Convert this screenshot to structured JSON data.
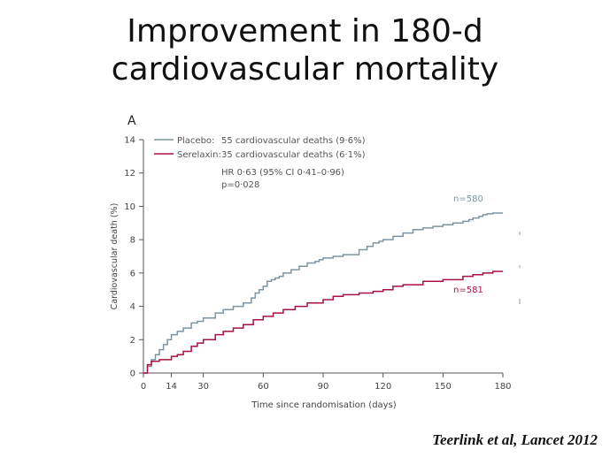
{
  "slide": {
    "title_line1": "Improvement in 180-d",
    "title_line2": "cardiovascular mortality",
    "citation": "Teerlink et al, Lancet 2012"
  },
  "chart_data": {
    "type": "line",
    "panel_label": "A",
    "xlabel": "Time since randomisation (days)",
    "ylabel": "Cardiovascular death (%)",
    "xlim": [
      0,
      180
    ],
    "ylim": [
      0,
      14
    ],
    "xticks": [
      0,
      14,
      30,
      60,
      90,
      120,
      150,
      180
    ],
    "yticks": [
      0,
      2,
      4,
      6,
      8,
      10,
      12,
      14
    ],
    "legend": {
      "position": "top-left",
      "entries": [
        {
          "label": "Placebo:",
          "text": "55 cardiovascular deaths (9·6%)",
          "color": "#7d95a3"
        },
        {
          "label": "Serelaxin:",
          "text": "35 cardiovascular deaths (6·1%)",
          "color": "#a8123f"
        }
      ]
    },
    "stats": {
      "hr": "HR 0·63 (95% CI 0·41–0·96)",
      "p": "p=0·028"
    },
    "series": [
      {
        "name": "Placebo",
        "color": "#7d95a3",
        "end_label": "n=580",
        "x": [
          0,
          2,
          4,
          6,
          8,
          10,
          12,
          14,
          17,
          20,
          24,
          27,
          30,
          36,
          40,
          45,
          50,
          54,
          56,
          58,
          60,
          62,
          64,
          66,
          68,
          70,
          74,
          78,
          82,
          86,
          88,
          90,
          92,
          95,
          100,
          108,
          112,
          115,
          118,
          120,
          125,
          130,
          135,
          140,
          145,
          150,
          155,
          160,
          163,
          165,
          168,
          170,
          172,
          175,
          180
        ],
        "y": [
          0,
          0.4,
          0.8,
          1.1,
          1.4,
          1.7,
          2.0,
          2.3,
          2.5,
          2.7,
          3.0,
          3.1,
          3.3,
          3.6,
          3.8,
          4.0,
          4.2,
          4.5,
          4.8,
          5.0,
          5.2,
          5.5,
          5.6,
          5.7,
          5.8,
          6.0,
          6.2,
          6.4,
          6.6,
          6.7,
          6.8,
          6.9,
          6.9,
          7.0,
          7.1,
          7.4,
          7.6,
          7.8,
          7.9,
          8.0,
          8.2,
          8.4,
          8.6,
          8.7,
          8.8,
          8.9,
          9.0,
          9.1,
          9.2,
          9.3,
          9.4,
          9.5,
          9.55,
          9.6,
          9.6
        ]
      },
      {
        "name": "Serelaxin",
        "color": "#a8123f",
        "end_label": "n=581",
        "x": [
          0,
          2,
          4,
          8,
          14,
          17,
          20,
          24,
          27,
          30,
          36,
          40,
          45,
          50,
          55,
          60,
          65,
          70,
          76,
          82,
          90,
          95,
          100,
          108,
          115,
          120,
          125,
          130,
          140,
          150,
          160,
          165,
          170,
          175,
          180
        ],
        "y": [
          0,
          0.5,
          0.7,
          0.8,
          1.0,
          1.1,
          1.3,
          1.6,
          1.8,
          2.0,
          2.3,
          2.5,
          2.7,
          2.9,
          3.2,
          3.4,
          3.6,
          3.8,
          4.0,
          4.2,
          4.4,
          4.6,
          4.7,
          4.8,
          4.9,
          5.0,
          5.2,
          5.3,
          5.5,
          5.6,
          5.8,
          5.9,
          6.0,
          6.1,
          6.1
        ]
      }
    ]
  }
}
